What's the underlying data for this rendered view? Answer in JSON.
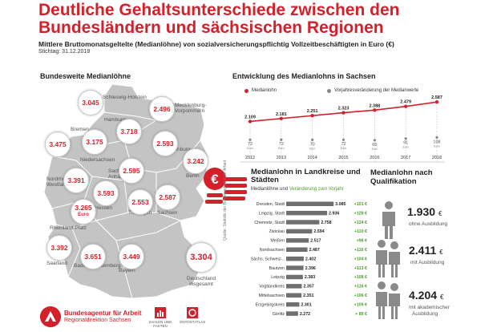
{
  "header": {
    "title": "Deutliche Gehaltsunterschiede zwischen den Bundesländern und sächsischen Regionen",
    "subtitle": "Mittlere Bruttomonatsgeltelte (Medianlöhne) von sozialversicherungspflichtig Vollzeitbeschäftigten in Euro (€)",
    "stichtag": "Stichtag: 31.12.2018"
  },
  "map": {
    "heading": "Bundesweite Medianlöhne",
    "states": [
      {
        "name": "Schleswig-Holstein",
        "value": "3.045"
      },
      {
        "name": "Mecklenburg-Vorpommern",
        "value": "2.496"
      },
      {
        "name": "Hamburg",
        "value": "3.718"
      },
      {
        "name": "Bremen",
        "value": "3.475"
      },
      {
        "name": "Niedersachsen",
        "value": "3.175"
      },
      {
        "name": "Brandenburg",
        "value": "2.593"
      },
      {
        "name": "Berlin",
        "value": "3.242"
      },
      {
        "name": "Sachsen-Anhalt",
        "value": "2.595"
      },
      {
        "name": "Nordrhein-Westfalen",
        "value": "3.391"
      },
      {
        "name": "Hessen",
        "value": "3.593"
      },
      {
        "name": "Thüringen",
        "value": "2.553"
      },
      {
        "name": "Sachsen",
        "value": "2.587"
      },
      {
        "name": "Rheinland-Pfalz",
        "value": "3.265"
      },
      {
        "name": "Saarland",
        "value": "3.392"
      },
      {
        "name": "Baden-Württemberg",
        "value": "3.651"
      },
      {
        "name": "Bayern",
        "value": "3.449"
      }
    ],
    "labels": {
      "sh": "Schleswig-Holstein",
      "mv1": "Mecklenburg-",
      "mv2": "Vorpommern",
      "hh": "Hamburg",
      "hb": "Bremen",
      "ni": "Niedersachsen",
      "bb": "Brandenburg",
      "be": "Berlin",
      "st1": "Sachsen",
      "st2": "Anhalt",
      "nw1": "Nordrhein-",
      "nw2": "Westfalen",
      "he": "Hessen",
      "th": "Thüringen",
      "sn": "Sachsen",
      "rp": "Rheinland-Pfalz",
      "sl": "Saarland",
      "bw": "Baden-Württemberg",
      "by": "Bayern",
      "euro": "Euro"
    },
    "germany_value": "3.304",
    "germany_label_1": "Deutschland",
    "germany_label_2": "insgesamt"
  },
  "trend": {
    "heading": "Entwicklung des Medianlohns in Sachsen",
    "legend_median": "Medianlohn",
    "legend_change": "Vorjahresveränderung der Medianwerte",
    "unit": "Euro"
  },
  "kreise": {
    "heading": "Medianlohn in Landkreise und Städten",
    "sub_median": "Medianlöhne",
    "sub_und": "und",
    "sub_change": "Veränderung zum Vorjahr",
    "source": "Quelle: Statistik der Bundesagentur für Arbeit"
  },
  "qualifikation": {
    "heading": "Medianlohn nach Qualifikation",
    "items": [
      {
        "value": "1.930",
        "unit": "€",
        "label1": "ohne Ausbildung",
        "label2": ""
      },
      {
        "value": "2.411",
        "unit": "€",
        "label1": "mit Ausbildung",
        "label2": ""
      },
      {
        "value": "4.204",
        "unit": "€",
        "label1": "mit akademischer",
        "label2": "Ausbildung"
      }
    ]
  },
  "footer": {
    "org": "Bundesagentur für Arbeit",
    "region": "Regionaldirektion Sachsen",
    "icon1": "ZAHLEN UND FAKTEN",
    "icon2": "ONTOSTATLAS"
  },
  "colors": {
    "accent": "#d4202b",
    "bar": "#6f6f6f",
    "change": "#4a9a2a",
    "map_fill": "#c4c4c4"
  },
  "chart_data": [
    {
      "type": "line",
      "title": "Entwicklung des Medianlohns in Sachsen",
      "x": [
        "2012",
        "2013",
        "2014",
        "2015",
        "2016",
        "2017",
        "2018"
      ],
      "series": [
        {
          "name": "Medianlohn",
          "values": [
            2109,
            2181,
            2251,
            2323,
            2388,
            2479,
            2587
          ]
        },
        {
          "name": "Vorjahresveränderung der Medianwerte",
          "values": [
            72,
            72,
            70,
            72,
            65,
            91,
            108
          ]
        }
      ],
      "ylim": [
        1900,
        2650
      ]
    },
    {
      "type": "bar",
      "title": "Medianlohn in Landkreise und Städten",
      "categories": [
        "Dresden, Stadt",
        "Leipzig, Stadt",
        "Chemnitz, Stadt",
        "Zwickau",
        "Meißen",
        "Nordsachsen",
        "Sächs. Schweiz-..",
        "Bautzen",
        "Leipzig",
        "Vogtlandkreis",
        "Mittelsachsen",
        "Erzgebirgskreis",
        "Görlitz"
      ],
      "values": [
        3085,
        2936,
        2758,
        2594,
        2517,
        2487,
        2402,
        2396,
        2383,
        2357,
        2351,
        2301,
        2272
      ],
      "labels": [
        "3.085",
        "2.936",
        "2.758",
        "2.594",
        "2.517",
        "2.487",
        "2.402",
        "2.396",
        "2.383",
        "2.357",
        "2.351",
        "2.301",
        "2.272"
      ],
      "changes": [
        "+101 €",
        "+128 €",
        "+124 €",
        "+110 €",
        "+98 €",
        "+116 €",
        "+104 €",
        "+113 €",
        "+108 €",
        "+116 €",
        "+106 €",
        "+109 €",
        "+ 89 €"
      ],
      "xlim": [
        2000,
        3100
      ]
    }
  ]
}
